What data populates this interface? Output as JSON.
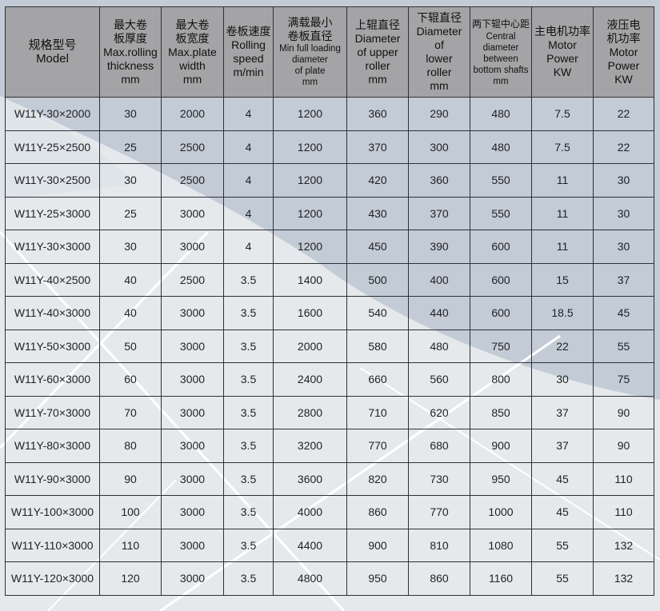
{
  "table": {
    "headers": [
      {
        "zh": "规格型号",
        "en": [
          "Model"
        ]
      },
      {
        "zh": "最大卷板厚度",
        "en": [
          "Max.rolling",
          "thickness",
          "mm"
        ]
      },
      {
        "zh": "最大卷板宽度",
        "en": [
          "Max.plate",
          "width",
          "mm"
        ]
      },
      {
        "zh": "卷板速度",
        "en": [
          "Rolling",
          "speed",
          "m/min"
        ]
      },
      {
        "zh": "满载最小卷板直径",
        "en": [
          "Min full loading",
          "diameter",
          "of plate",
          "mm"
        ]
      },
      {
        "zh": "上辊直径",
        "en": [
          "Diameter",
          "of upper",
          "roller",
          "mm"
        ]
      },
      {
        "zh": "下辊直径",
        "en": [
          "Diameter",
          "of",
          "lower",
          "roller",
          "mm"
        ]
      },
      {
        "zh": "两下辊中心距",
        "en": [
          "Central",
          "diameter",
          "between",
          "bottom shafts",
          "mm"
        ]
      },
      {
        "zh": "主电机功率",
        "en": [
          "Motor",
          "Power",
          "KW"
        ]
      },
      {
        "zh": "液压电机功率",
        "en": [
          "Motor",
          "Power",
          "KW"
        ]
      }
    ],
    "rows": [
      [
        "W11Y-30×2000",
        "30",
        "2000",
        "4",
        "1200",
        "360",
        "290",
        "480",
        "7.5",
        "22"
      ],
      [
        "W11Y-25×2500",
        "25",
        "2500",
        "4",
        "1200",
        "370",
        "300",
        "480",
        "7.5",
        "22"
      ],
      [
        "W11Y-30×2500",
        "30",
        "2500",
        "4",
        "1200",
        "420",
        "360",
        "550",
        "11",
        "30"
      ],
      [
        "W11Y-25×3000",
        "25",
        "3000",
        "4",
        "1200",
        "430",
        "370",
        "550",
        "11",
        "30"
      ],
      [
        "W11Y-30×3000",
        "30",
        "3000",
        "4",
        "1200",
        "450",
        "390",
        "600",
        "11",
        "30"
      ],
      [
        "W11Y-40×2500",
        "40",
        "2500",
        "3.5",
        "1400",
        "500",
        "400",
        "600",
        "15",
        "37"
      ],
      [
        "W11Y-40×3000",
        "40",
        "3000",
        "3.5",
        "1600",
        "540",
        "440",
        "600",
        "18.5",
        "45"
      ],
      [
        "W11Y-50×3000",
        "50",
        "3000",
        "3.5",
        "2000",
        "580",
        "480",
        "750",
        "22",
        "55"
      ],
      [
        "W11Y-60×3000",
        "60",
        "3000",
        "3.5",
        "2400",
        "660",
        "560",
        "800",
        "30",
        "75"
      ],
      [
        "W11Y-70×3000",
        "70",
        "3000",
        "3.5",
        "2800",
        "710",
        "620",
        "850",
        "37",
        "90"
      ],
      [
        "W11Y-80×3000",
        "80",
        "3000",
        "3.5",
        "3200",
        "770",
        "680",
        "900",
        "37",
        "90"
      ],
      [
        "W11Y-90×3000",
        "90",
        "3000",
        "3.5",
        "3600",
        "820",
        "730",
        "950",
        "45",
        "110"
      ],
      [
        "W11Y-100×3000",
        "100",
        "3000",
        "3.5",
        "4000",
        "860",
        "770",
        "1000",
        "45",
        "110"
      ],
      [
        "W11Y-110×3000",
        "110",
        "3000",
        "3.5",
        "4400",
        "900",
        "810",
        "1080",
        "55",
        "132"
      ],
      [
        "W11Y-120×3000",
        "120",
        "3000",
        "3.5",
        "4800",
        "950",
        "860",
        "1160",
        "55",
        "132"
      ]
    ]
  },
  "colors": {
    "header": "#a4a4a6",
    "accent_region": "#c3ccd6",
    "background": "#e6e9eb"
  }
}
